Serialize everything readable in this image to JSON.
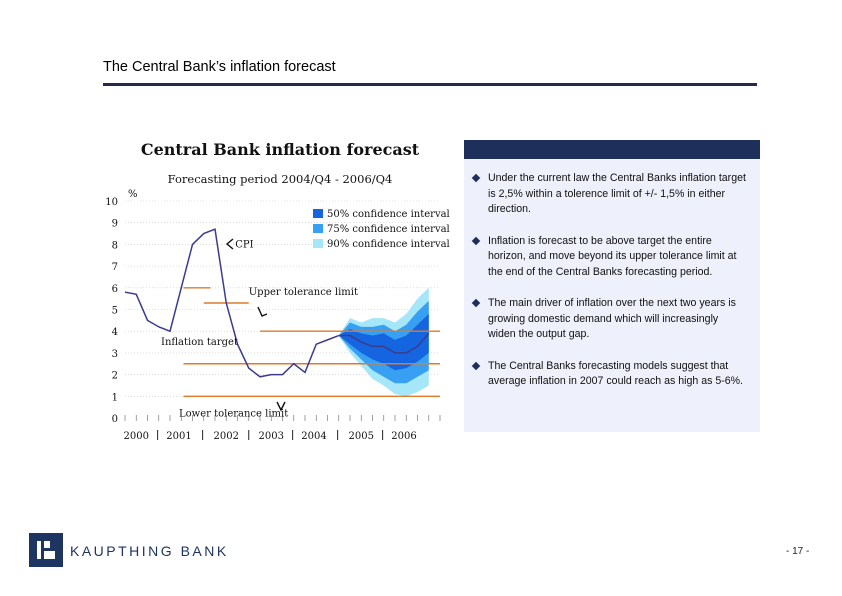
{
  "page": {
    "title": "The Central Bank’s inflation forecast",
    "page_number": "- 17 -"
  },
  "logo": {
    "text": "KAUPTHING BANK"
  },
  "panel": {
    "bullets": [
      "Under the current law the Central Banks inflation target is 2,5% within a tolerence limit of +/- 1,5% in either direction.",
      "Inflation is forecast to be above target the entire horizon, and move beyond its upper tolerance limit at the end of the Central Banks forecasting period.",
      "The main driver of inflation over the next two years is growing domestic demand which will increasingly widen the output gap.",
      "The Central Banks forecasting models suggest that average inflation in 2007 could reach as high as 5-6%."
    ]
  },
  "chart_data": {
    "type": "line",
    "title": "Central Bank inflation forecast",
    "subtitle": "Forecasting period 2004/Q4 - 2006/Q4",
    "ylabel": "%",
    "xlabel": "",
    "ylim": [
      0,
      10
    ],
    "yticks": [
      "0",
      "1",
      "2",
      "3",
      "4",
      "5",
      "6",
      "7",
      "8",
      "9",
      "10"
    ],
    "xlim": [
      2000,
      2007
    ],
    "xticks": [
      {
        "label": "2000",
        "x": 2000.25
      },
      {
        "label": "2001",
        "x": 2001.2
      },
      {
        "label": "2002",
        "x": 2002.25
      },
      {
        "label": "2003",
        "x": 2003.25
      },
      {
        "label": "2004",
        "x": 2004.2
      },
      {
        "label": "2005",
        "x": 2005.25
      },
      {
        "label": "2006",
        "x": 2006.2
      }
    ],
    "colors": {
      "cpi": "#3c3c8c",
      "band50": "#1565e0",
      "band75": "#37a0f2",
      "band90": "#a5e6f8",
      "limits": "#e07a2a"
    },
    "legend": [
      "50% confidence interval",
      "75% confidence interval",
      "90% confidence interval"
    ],
    "legend_position": "top-right",
    "series": [
      {
        "name": "CPI",
        "points": [
          [
            2000.0,
            5.8
          ],
          [
            2000.25,
            5.7
          ],
          [
            2000.5,
            4.5
          ],
          [
            2000.75,
            4.2
          ],
          [
            2001.0,
            4.0
          ],
          [
            2001.25,
            6.0
          ],
          [
            2001.5,
            8.0
          ],
          [
            2001.75,
            8.5
          ],
          [
            2002.0,
            8.7
          ],
          [
            2002.25,
            5.3
          ],
          [
            2002.5,
            3.4
          ],
          [
            2002.75,
            2.3
          ],
          [
            2003.0,
            1.9
          ],
          [
            2003.25,
            2.0
          ],
          [
            2003.5,
            2.0
          ],
          [
            2003.75,
            2.5
          ],
          [
            2004.0,
            2.1
          ],
          [
            2004.25,
            3.4
          ],
          [
            2004.5,
            3.6
          ],
          [
            2004.75,
            3.8
          ]
        ]
      },
      {
        "name": "Forecast",
        "points": [
          [
            2004.75,
            3.8
          ],
          [
            2005.0,
            3.8
          ],
          [
            2005.25,
            3.5
          ],
          [
            2005.5,
            3.3
          ],
          [
            2005.75,
            3.3
          ],
          [
            2006.0,
            3.0
          ],
          [
            2006.25,
            3.0
          ],
          [
            2006.5,
            3.3
          ],
          [
            2006.75,
            3.9
          ]
        ]
      }
    ],
    "bands": {
      "x": [
        2004.75,
        2005.0,
        2005.25,
        2005.5,
        2005.75,
        2006.0,
        2006.25,
        2006.5,
        2006.75
      ],
      "b90": [
        [
          3.8,
          3.8
        ],
        [
          3.0,
          4.6
        ],
        [
          2.4,
          4.4
        ],
        [
          1.8,
          4.6
        ],
        [
          1.5,
          4.6
        ],
        [
          1.1,
          4.4
        ],
        [
          1.0,
          4.8
        ],
        [
          1.2,
          5.5
        ],
        [
          1.5,
          6.0
        ]
      ],
      "b75": [
        [
          3.8,
          3.8
        ],
        [
          3.2,
          4.4
        ],
        [
          2.7,
          4.2
        ],
        [
          2.2,
          4.2
        ],
        [
          1.9,
          4.3
        ],
        [
          1.6,
          4.0
        ],
        [
          1.6,
          4.3
        ],
        [
          1.9,
          4.9
        ],
        [
          2.2,
          5.4
        ]
      ],
      "b50": [
        [
          3.8,
          3.8
        ],
        [
          3.4,
          4.1
        ],
        [
          3.0,
          3.9
        ],
        [
          2.7,
          3.8
        ],
        [
          2.5,
          3.9
        ],
        [
          2.2,
          3.6
        ],
        [
          2.3,
          3.8
        ],
        [
          2.6,
          4.3
        ],
        [
          3.0,
          4.8
        ]
      ]
    },
    "target_lines": [
      {
        "y": 6.0,
        "x": [
          2001.3,
          2001.9
        ]
      },
      {
        "y": 5.3,
        "x": [
          2001.75,
          2002.75
        ]
      },
      {
        "y": 4.0,
        "x": [
          2003.0,
          2007.0
        ]
      },
      {
        "y": 2.5,
        "x": [
          2001.3,
          2007.0
        ]
      },
      {
        "y": 1.0,
        "x": [
          2001.3,
          2007.0
        ]
      }
    ],
    "annotations": [
      {
        "text": "CPI",
        "x": 2002.45,
        "y": 8.0
      },
      {
        "text": "Upper tolerance limit",
        "x": 2002.75,
        "y": 5.8
      },
      {
        "text": "Inflation target",
        "x": 2000.8,
        "y": 3.5
      },
      {
        "text": "Lower tolerance limit",
        "x": 2001.2,
        "y": 0.2
      }
    ]
  }
}
